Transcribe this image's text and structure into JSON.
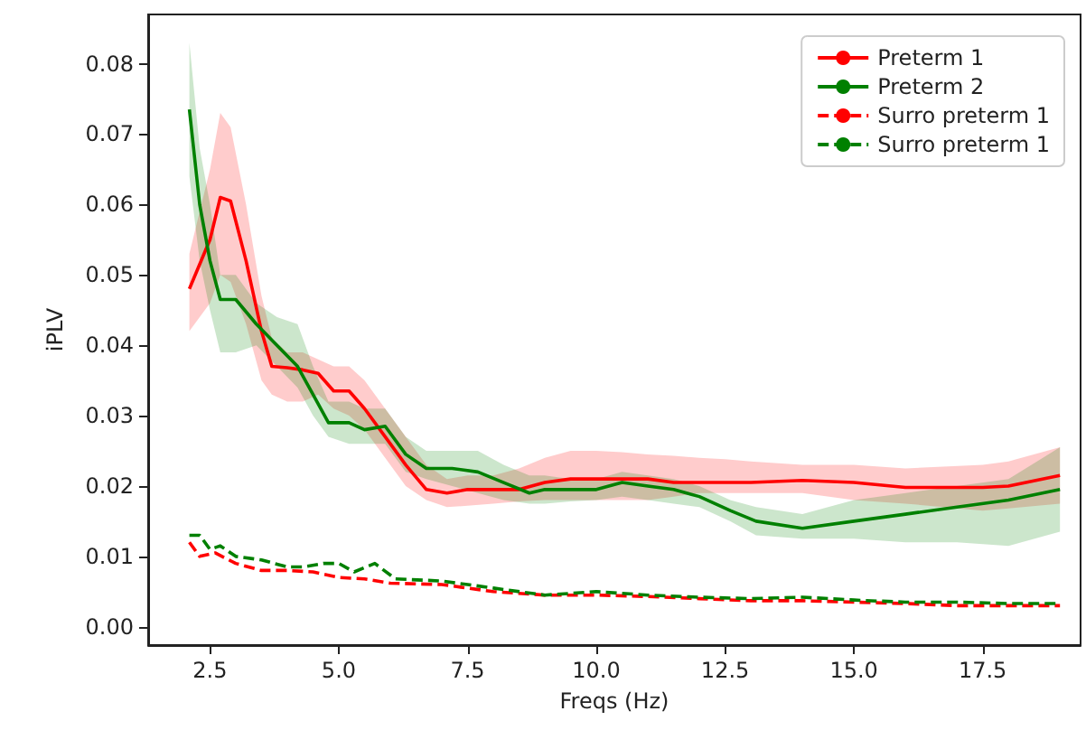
{
  "chart_data": {
    "type": "line",
    "xlabel": "Freqs (Hz)",
    "ylabel": "iPLV",
    "xlim": [
      1.3,
      19.4
    ],
    "ylim": [
      -0.0026,
      0.087
    ],
    "xticks": [
      {
        "value": 2.5,
        "label": "2.5"
      },
      {
        "value": 5,
        "label": "5.0"
      },
      {
        "value": 7.5,
        "label": "7.5"
      },
      {
        "value": 10,
        "label": "10.0"
      },
      {
        "value": 12.5,
        "label": "12.5"
      },
      {
        "value": 15,
        "label": "15.0"
      },
      {
        "value": 17.5,
        "label": "17.5"
      }
    ],
    "yticks": [
      {
        "value": 0,
        "label": "0.00"
      },
      {
        "value": 0.01,
        "label": "0.01"
      },
      {
        "value": 0.02,
        "label": "0.02"
      },
      {
        "value": 0.03,
        "label": "0.03"
      },
      {
        "value": 0.04,
        "label": "0.04"
      },
      {
        "value": 0.05,
        "label": "0.05"
      },
      {
        "value": 0.06,
        "label": "0.06"
      },
      {
        "value": 0.07,
        "label": "0.07"
      },
      {
        "value": 0.08,
        "label": "0.08"
      }
    ],
    "grid": false,
    "legend": "top right",
    "marker": "none",
    "series": [
      {
        "name": "Preterm 1",
        "color": "#ff0000",
        "line_style": "solid",
        "x": [
          2.1,
          2.5,
          2.7,
          2.9,
          3.2,
          3.5,
          3.7,
          4.0,
          4.3,
          4.6,
          4.9,
          5.2,
          5.5,
          5.9,
          6.3,
          6.7,
          7.1,
          7.5,
          8.0,
          8.5,
          9.0,
          9.5,
          10.0,
          10.5,
          11.0,
          11.5,
          12.0,
          12.5,
          13.0,
          14.0,
          15.0,
          16.0,
          17.5,
          18.0,
          19.0
        ],
        "values": [
          0.048,
          0.055,
          0.061,
          0.0605,
          0.052,
          0.042,
          0.037,
          0.0368,
          0.0365,
          0.036,
          0.0335,
          0.0335,
          0.031,
          0.027,
          0.023,
          0.0195,
          0.019,
          0.0195,
          0.0195,
          0.0195,
          0.0205,
          0.021,
          0.021,
          0.021,
          0.021,
          0.0205,
          0.0205,
          0.0205,
          0.0205,
          0.0208,
          0.0205,
          0.0198,
          0.0198,
          0.02,
          0.0215
        ],
        "lower": [
          0.042,
          0.046,
          0.05,
          0.049,
          0.043,
          0.035,
          0.033,
          0.032,
          0.032,
          0.033,
          0.031,
          0.03,
          0.028,
          0.024,
          0.02,
          0.018,
          0.017,
          0.0172,
          0.0175,
          0.0178,
          0.018,
          0.018,
          0.018,
          0.018,
          0.018,
          0.0185,
          0.019,
          0.019,
          0.019,
          0.019,
          0.018,
          0.0175,
          0.0165,
          0.0168,
          0.0175
        ],
        "upper": [
          0.053,
          0.065,
          0.073,
          0.071,
          0.06,
          0.047,
          0.041,
          0.039,
          0.039,
          0.038,
          0.037,
          0.037,
          0.035,
          0.031,
          0.027,
          0.023,
          0.021,
          0.0215,
          0.0215,
          0.0225,
          0.024,
          0.025,
          0.025,
          0.0248,
          0.0245,
          0.0243,
          0.024,
          0.0238,
          0.0235,
          0.023,
          0.023,
          0.0225,
          0.023,
          0.0235,
          0.0255
        ]
      },
      {
        "name": "Preterm 2",
        "color": "#008000",
        "line_style": "solid",
        "x": [
          2.1,
          2.3,
          2.5,
          2.7,
          3.0,
          3.4,
          3.8,
          4.2,
          4.5,
          4.8,
          5.2,
          5.5,
          5.9,
          6.3,
          6.7,
          7.2,
          7.7,
          8.2,
          8.7,
          9.0,
          9.5,
          10.0,
          10.5,
          11.0,
          11.5,
          12.0,
          12.6,
          13.1,
          14.0,
          15.0,
          16.0,
          17.0,
          18.0,
          19.0
        ],
        "values": [
          0.0735,
          0.06,
          0.052,
          0.0465,
          0.0465,
          0.043,
          0.04,
          0.037,
          0.033,
          0.029,
          0.029,
          0.028,
          0.0285,
          0.0245,
          0.0225,
          0.0225,
          0.022,
          0.0205,
          0.019,
          0.0195,
          0.0195,
          0.0195,
          0.0205,
          0.02,
          0.0195,
          0.0185,
          0.0165,
          0.015,
          0.014,
          0.015,
          0.016,
          0.017,
          0.018,
          0.0195
        ],
        "lower": [
          0.064,
          0.052,
          0.045,
          0.039,
          0.039,
          0.04,
          0.037,
          0.034,
          0.03,
          0.027,
          0.026,
          0.026,
          0.026,
          0.022,
          0.021,
          0.02,
          0.019,
          0.018,
          0.0175,
          0.0175,
          0.0178,
          0.018,
          0.0185,
          0.018,
          0.0175,
          0.017,
          0.015,
          0.013,
          0.0125,
          0.0125,
          0.012,
          0.012,
          0.0115,
          0.0135
        ],
        "upper": [
          0.083,
          0.068,
          0.06,
          0.05,
          0.05,
          0.046,
          0.044,
          0.043,
          0.037,
          0.032,
          0.032,
          0.031,
          0.031,
          0.027,
          0.025,
          0.025,
          0.025,
          0.023,
          0.0215,
          0.0215,
          0.021,
          0.021,
          0.022,
          0.0215,
          0.021,
          0.02,
          0.018,
          0.017,
          0.016,
          0.018,
          0.019,
          0.02,
          0.021,
          0.0255
        ]
      },
      {
        "name": "Surro preterm 1",
        "color": "#ff0000",
        "line_style": "dashed",
        "x": [
          2.1,
          2.3,
          2.6,
          3.0,
          3.5,
          4.0,
          4.5,
          5.0,
          5.5,
          6.0,
          7.0,
          8.0,
          9.0,
          10.0,
          11.0,
          12.0,
          13.0,
          14.0,
          15.0,
          16.0,
          17.0,
          18.0,
          19.0
        ],
        "values": [
          0.012,
          0.01,
          0.0105,
          0.009,
          0.008,
          0.008,
          0.0078,
          0.007,
          0.0068,
          0.0062,
          0.006,
          0.005,
          0.0045,
          0.0045,
          0.0043,
          0.004,
          0.0037,
          0.0037,
          0.0035,
          0.0033,
          0.003,
          0.003,
          0.003
        ]
      },
      {
        "name": "Surro preterm 1",
        "color": "#008000",
        "line_style": "dashed",
        "x": [
          2.1,
          2.3,
          2.5,
          2.7,
          3.0,
          3.5,
          4.0,
          4.3,
          4.7,
          5.0,
          5.3,
          5.7,
          6.1,
          7.0,
          8.0,
          9.0,
          10.0,
          11.0,
          12.0,
          13.0,
          14.0,
          15.0,
          16.0,
          17.0,
          18.0,
          19.0
        ],
        "values": [
          0.013,
          0.013,
          0.011,
          0.0115,
          0.01,
          0.0095,
          0.0085,
          0.0085,
          0.009,
          0.009,
          0.0078,
          0.009,
          0.0068,
          0.0065,
          0.0055,
          0.0045,
          0.005,
          0.0045,
          0.0042,
          0.004,
          0.0042,
          0.0038,
          0.0035,
          0.0035,
          0.0033,
          0.0033
        ]
      }
    ]
  }
}
